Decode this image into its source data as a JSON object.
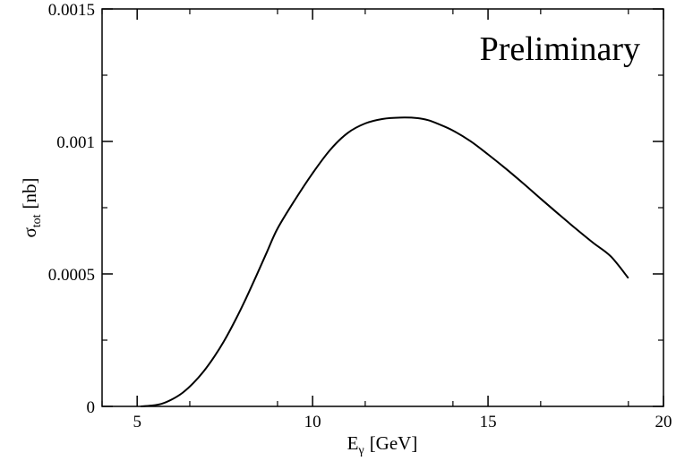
{
  "chart_data": {
    "type": "line",
    "title": "",
    "annotation": "Preliminary",
    "annotation_color": "#ff0000",
    "line_color": "#000000",
    "xlabel": {
      "main": "E",
      "sub": "γ",
      "unit": "[GeV]"
    },
    "ylabel": {
      "main": "σ",
      "sub": "tot",
      "unit": "[nb]"
    },
    "xlim": [
      4,
      20
    ],
    "ylim": [
      0,
      0.0015
    ],
    "x_ticks": [
      5,
      10,
      15,
      20
    ],
    "x_tick_labels": [
      "5",
      "10",
      "15",
      "20"
    ],
    "y_ticks": [
      0,
      0.0005,
      0.001,
      0.0015
    ],
    "y_tick_labels": [
      "0",
      "0.0005",
      "0.001",
      "0.0015"
    ],
    "grid": false,
    "legend": "none",
    "series": [
      {
        "x": [
          5.1,
          5.4,
          5.7,
          6.0,
          6.3,
          6.6,
          6.9,
          7.2,
          7.5,
          7.8,
          8.1,
          8.4,
          8.7,
          9.0,
          9.5,
          10.0,
          10.5,
          11.0,
          11.5,
          12.0,
          12.5,
          13.0,
          13.3,
          13.6,
          14.0,
          14.5,
          15.0,
          15.5,
          16.0,
          16.5,
          17.0,
          17.5,
          18.0,
          18.5,
          19.0
        ],
        "y": [
          0.0,
          3e-06,
          1e-05,
          2.7e-05,
          5.2e-05,
          8.8e-05,
          0.000133,
          0.000188,
          0.000252,
          0.000326,
          0.000407,
          0.000494,
          0.000583,
          0.000671,
          0.00078,
          0.00088,
          0.000968,
          0.001032,
          0.001068,
          0.001085,
          0.00109,
          0.001088,
          0.00108,
          0.001065,
          0.001041,
          0.001001,
          0.000951,
          0.000898,
          0.000842,
          0.000784,
          0.000727,
          0.000671,
          0.000617,
          0.000566,
          0.000484
        ]
      }
    ]
  }
}
